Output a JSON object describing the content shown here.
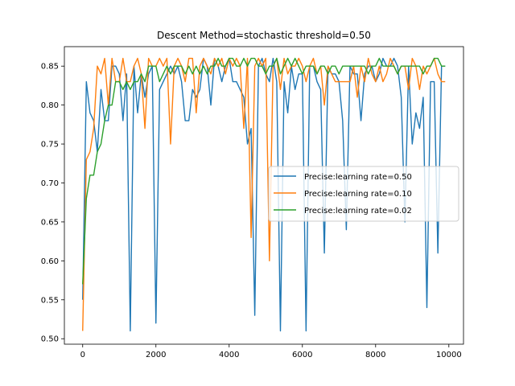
{
  "chart_data": {
    "type": "line",
    "title": "Descent Method=stochastic threshold=0.50",
    "xlabel": "",
    "ylabel": "",
    "xlim": [
      -500,
      10400
    ],
    "ylim": [
      0.493,
      0.875
    ],
    "xticks": [
      0,
      2000,
      4000,
      6000,
      8000,
      10000
    ],
    "yticks": [
      0.5,
      0.55,
      0.6,
      0.65,
      0.7,
      0.75,
      0.8,
      0.85
    ],
    "xtick_labels": [
      "0",
      "2000",
      "4000",
      "6000",
      "8000",
      "10000"
    ],
    "ytick_labels": [
      "0.50",
      "0.55",
      "0.60",
      "0.65",
      "0.70",
      "0.75",
      "0.80",
      "0.85"
    ],
    "grid": false,
    "legend_position": "center-right",
    "series": [
      {
        "name": "Precise:learning rate=0.50",
        "color": "#1f77b4",
        "x": [
          0,
          100,
          200,
          300,
          400,
          500,
          600,
          700,
          800,
          900,
          1000,
          1100,
          1200,
          1300,
          1400,
          1500,
          1600,
          1700,
          1800,
          1900,
          2000,
          2100,
          2200,
          2300,
          2400,
          2500,
          2600,
          2700,
          2800,
          2900,
          3000,
          3100,
          3200,
          3300,
          3400,
          3500,
          3600,
          3700,
          3800,
          3900,
          4000,
          4100,
          4200,
          4300,
          4400,
          4500,
          4600,
          4700,
          4800,
          4900,
          5000,
          5100,
          5200,
          5300,
          5400,
          5500,
          5600,
          5700,
          5800,
          5900,
          6000,
          6100,
          6200,
          6300,
          6400,
          6500,
          6600,
          6700,
          6800,
          6900,
          7000,
          7100,
          7200,
          7300,
          7400,
          7500,
          7600,
          7700,
          7800,
          7900,
          8000,
          8100,
          8200,
          8300,
          8400,
          8500,
          8600,
          8700,
          8800,
          8900,
          9000,
          9100,
          9200,
          9300,
          9400,
          9500,
          9600,
          9700,
          9800,
          9900
        ],
        "y": [
          0.55,
          0.83,
          0.79,
          0.78,
          0.74,
          0.82,
          0.78,
          0.78,
          0.85,
          0.85,
          0.84,
          0.78,
          0.84,
          0.51,
          0.85,
          0.79,
          0.84,
          0.81,
          0.84,
          0.85,
          0.52,
          0.82,
          0.83,
          0.84,
          0.85,
          0.84,
          0.85,
          0.83,
          0.78,
          0.78,
          0.82,
          0.81,
          0.82,
          0.86,
          0.85,
          0.8,
          0.86,
          0.85,
          0.83,
          0.85,
          0.86,
          0.83,
          0.83,
          0.82,
          0.81,
          0.75,
          0.77,
          0.53,
          0.85,
          0.86,
          0.84,
          0.83,
          0.86,
          0.83,
          0.51,
          0.83,
          0.79,
          0.85,
          0.82,
          0.84,
          0.84,
          0.51,
          0.85,
          0.85,
          0.83,
          0.82,
          0.61,
          0.85,
          0.84,
          0.84,
          0.83,
          0.78,
          0.64,
          0.85,
          0.84,
          0.84,
          0.78,
          0.84,
          0.85,
          0.85,
          0.83,
          0.84,
          0.86,
          0.85,
          0.85,
          0.86,
          0.85,
          0.81,
          0.65,
          0.85,
          0.75,
          0.79,
          0.77,
          0.81,
          0.54,
          0.83,
          0.83,
          0.61,
          0.85,
          0.85
        ]
      },
      {
        "name": "Precise:learning rate=0.10",
        "color": "#ff7f0e",
        "x": [
          0,
          100,
          200,
          300,
          400,
          500,
          600,
          700,
          800,
          900,
          1000,
          1100,
          1200,
          1300,
          1400,
          1500,
          1600,
          1700,
          1800,
          1900,
          2000,
          2100,
          2200,
          2300,
          2400,
          2500,
          2600,
          2700,
          2800,
          2900,
          3000,
          3100,
          3200,
          3300,
          3400,
          3500,
          3600,
          3700,
          3800,
          3900,
          4000,
          4100,
          4200,
          4300,
          4400,
          4500,
          4600,
          4700,
          4800,
          4900,
          5000,
          5100,
          5200,
          5300,
          5400,
          5500,
          5600,
          5700,
          5800,
          5900,
          6000,
          6100,
          6200,
          6300,
          6400,
          6500,
          6600,
          6700,
          6800,
          6900,
          7000,
          7100,
          7200,
          7300,
          7400,
          7500,
          7600,
          7700,
          7800,
          7900,
          8000,
          8100,
          8200,
          8300,
          8400,
          8500,
          8600,
          8700,
          8800,
          8900,
          9000,
          9100,
          9200,
          9300,
          9400,
          9500,
          9600,
          9700,
          9800,
          9900
        ],
        "y": [
          0.51,
          0.73,
          0.74,
          0.77,
          0.85,
          0.84,
          0.86,
          0.8,
          0.86,
          0.83,
          0.83,
          0.86,
          0.83,
          0.83,
          0.85,
          0.86,
          0.84,
          0.77,
          0.86,
          0.85,
          0.85,
          0.86,
          0.85,
          0.86,
          0.75,
          0.85,
          0.86,
          0.85,
          0.83,
          0.86,
          0.86,
          0.79,
          0.85,
          0.86,
          0.85,
          0.84,
          0.86,
          0.85,
          0.86,
          0.84,
          0.86,
          0.85,
          0.86,
          0.85,
          0.77,
          0.86,
          0.63,
          0.85,
          0.86,
          0.85,
          0.86,
          0.6,
          0.85,
          0.86,
          0.82,
          0.86,
          0.84,
          0.85,
          0.85,
          0.86,
          0.85,
          0.83,
          0.85,
          0.86,
          0.84,
          0.85,
          0.8,
          0.85,
          0.84,
          0.83,
          0.83,
          0.83,
          0.83,
          0.83,
          0.85,
          0.81,
          0.85,
          0.83,
          0.86,
          0.84,
          0.83,
          0.85,
          0.83,
          0.84,
          0.86,
          0.85,
          0.84,
          0.85,
          0.85,
          0.82,
          0.86,
          0.85,
          0.82,
          0.85,
          0.84,
          0.85,
          0.86,
          0.84,
          0.83,
          0.83
        ]
      },
      {
        "name": "Precise:learning rate=0.02",
        "color": "#2ca02c",
        "x": [
          0,
          100,
          200,
          300,
          400,
          500,
          600,
          700,
          800,
          900,
          1000,
          1100,
          1200,
          1300,
          1400,
          1500,
          1600,
          1700,
          1800,
          1900,
          2000,
          2100,
          2200,
          2300,
          2400,
          2500,
          2600,
          2700,
          2800,
          2900,
          3000,
          3100,
          3200,
          3300,
          3400,
          3500,
          3600,
          3700,
          3800,
          3900,
          4000,
          4100,
          4200,
          4300,
          4400,
          4500,
          4600,
          4700,
          4800,
          4900,
          5000,
          5100,
          5200,
          5300,
          5400,
          5500,
          5600,
          5700,
          5800,
          5900,
          6000,
          6100,
          6200,
          6300,
          6400,
          6500,
          6600,
          6700,
          6800,
          6900,
          7000,
          7100,
          7200,
          7300,
          7400,
          7500,
          7600,
          7700,
          7800,
          7900,
          8000,
          8100,
          8200,
          8300,
          8400,
          8500,
          8600,
          8700,
          8800,
          8900,
          9000,
          9100,
          9200,
          9300,
          9400,
          9500,
          9600,
          9700,
          9800,
          9900
        ],
        "y": [
          0.57,
          0.68,
          0.71,
          0.71,
          0.74,
          0.75,
          0.78,
          0.8,
          0.8,
          0.83,
          0.83,
          0.82,
          0.83,
          0.82,
          0.83,
          0.83,
          0.84,
          0.83,
          0.85,
          0.85,
          0.85,
          0.83,
          0.84,
          0.85,
          0.84,
          0.85,
          0.85,
          0.85,
          0.84,
          0.85,
          0.84,
          0.85,
          0.84,
          0.85,
          0.84,
          0.85,
          0.85,
          0.86,
          0.85,
          0.85,
          0.86,
          0.86,
          0.85,
          0.85,
          0.86,
          0.85,
          0.86,
          0.86,
          0.85,
          0.85,
          0.84,
          0.85,
          0.85,
          0.86,
          0.84,
          0.85,
          0.86,
          0.85,
          0.86,
          0.85,
          0.84,
          0.85,
          0.85,
          0.85,
          0.84,
          0.85,
          0.85,
          0.84,
          0.85,
          0.85,
          0.84,
          0.85,
          0.85,
          0.85,
          0.85,
          0.85,
          0.85,
          0.85,
          0.84,
          0.85,
          0.85,
          0.86,
          0.85,
          0.85,
          0.85,
          0.85,
          0.84,
          0.85,
          0.85,
          0.85,
          0.85,
          0.85,
          0.85,
          0.84,
          0.85,
          0.85,
          0.86,
          0.86,
          0.85,
          0.85
        ]
      }
    ]
  }
}
